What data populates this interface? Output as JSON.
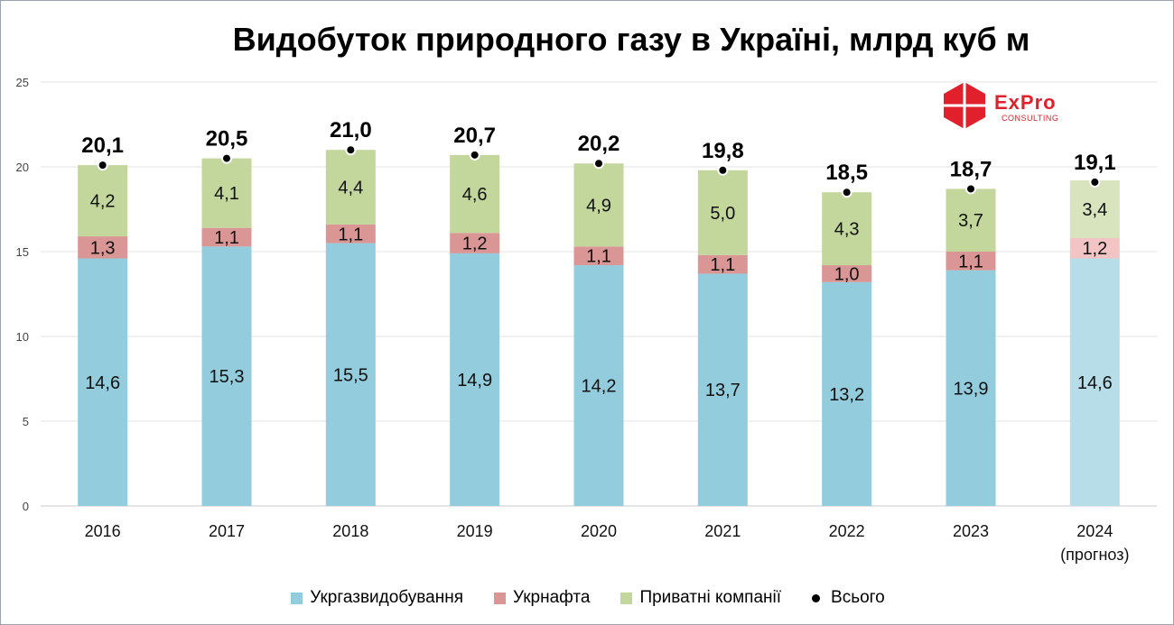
{
  "chart_data": {
    "type": "bar",
    "stacked": true,
    "title": "Видобуток природного газу в Україні, млрд куб м",
    "categories": [
      "2016",
      "2017",
      "2018",
      "2019",
      "2020",
      "2021",
      "2022",
      "2023",
      "2024"
    ],
    "category_sublabels": [
      "",
      "",
      "",
      "",
      "",
      "",
      "",
      "",
      "(прогноз)"
    ],
    "series": [
      {
        "name": "Укргазвидобування",
        "color": "#93cddd",
        "values": [
          14.6,
          15.3,
          15.5,
          14.9,
          14.2,
          13.7,
          13.2,
          13.9,
          14.6
        ],
        "labels": [
          "14,6",
          "15,3",
          "15,5",
          "14,9",
          "14,2",
          "13,7",
          "13,2",
          "13,9",
          "14,6"
        ]
      },
      {
        "name": "Укрнафта",
        "color": "#d99694",
        "values": [
          1.3,
          1.1,
          1.1,
          1.2,
          1.1,
          1.1,
          1.0,
          1.1,
          1.2
        ],
        "labels": [
          "1,3",
          "1,1",
          "1,1",
          "1,2",
          "1,1",
          "1,1",
          "1,0",
          "1,1",
          "1,2"
        ]
      },
      {
        "name": "Приватні компанії",
        "color": "#c3d69b",
        "values": [
          4.2,
          4.1,
          4.4,
          4.6,
          4.9,
          5.0,
          4.3,
          3.7,
          3.4
        ],
        "labels": [
          "4,2",
          "4,1",
          "4,4",
          "4,6",
          "4,9",
          "5,0",
          "4,3",
          "3,7",
          "3,4"
        ]
      }
    ],
    "forecast_colors": [
      "#b7dde8",
      "#f2c4c3",
      "#d7e4bd"
    ],
    "forecast_index": 8,
    "totals": {
      "name": "Всього",
      "values": [
        20.1,
        20.5,
        21.0,
        20.7,
        20.2,
        19.8,
        18.5,
        18.7,
        19.1
      ],
      "labels": [
        "20,1",
        "20,5",
        "21,0",
        "20,7",
        "20,2",
        "19,8",
        "18,5",
        "18,7",
        "19,1"
      ]
    },
    "y_ticks": [
      "0",
      "5",
      "10",
      "15",
      "20",
      "25"
    ],
    "ylim": [
      0,
      25
    ],
    "grid": true,
    "legend_position": "bottom"
  },
  "logo": {
    "brand": "ExPro",
    "sub": "CONSULTING",
    "color": "#e0202a"
  }
}
